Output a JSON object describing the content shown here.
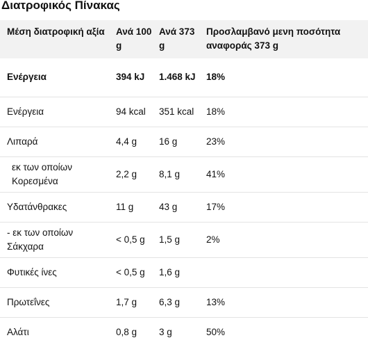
{
  "title": "Διατροφικός Πίνακας",
  "table": {
    "headers": [
      "Μέση διατροφική αξία",
      "Ανά 100 g",
      "Ανά 373 g",
      "Προσλαμβανό μενη ποσότητα αναφοράς 373 g"
    ],
    "rows": [
      {
        "label": "Ενέργεια",
        "per100": "394 kJ",
        "per373": "1.468 kJ",
        "ri": "18%"
      },
      {
        "label": "Ενέργεια",
        "per100": "94 kcal",
        "per373": "351 kcal",
        "ri": "18%"
      },
      {
        "label": "Λιπαρά",
        "per100": "4,4 g",
        "per373": "16 g",
        "ri": "23%"
      },
      {
        "label": "εκ των οποίων Κορεσμένα",
        "per100": "2,2 g",
        "per373": "8,1 g",
        "ri": "41%"
      },
      {
        "label": "Υδατάνθρακες",
        "per100": "11 g",
        "per373": "43 g",
        "ri": "17%"
      },
      {
        "label": "- εκ των οποίων Σάκχαρα",
        "per100": "< 0,5 g",
        "per373": "1,5 g",
        "ri": "2%"
      },
      {
        "label": "Φυτικές ίνες",
        "per100": "< 0,5 g",
        "per373": "1,6 g",
        "ri": ""
      },
      {
        "label": "Πρωτεΐνες",
        "per100": "1,7 g",
        "per373": "6,3 g",
        "ri": "13%"
      },
      {
        "label": "Αλάτι",
        "per100": "0,8 g",
        "per373": "3 g",
        "ri": "50%"
      }
    ]
  }
}
